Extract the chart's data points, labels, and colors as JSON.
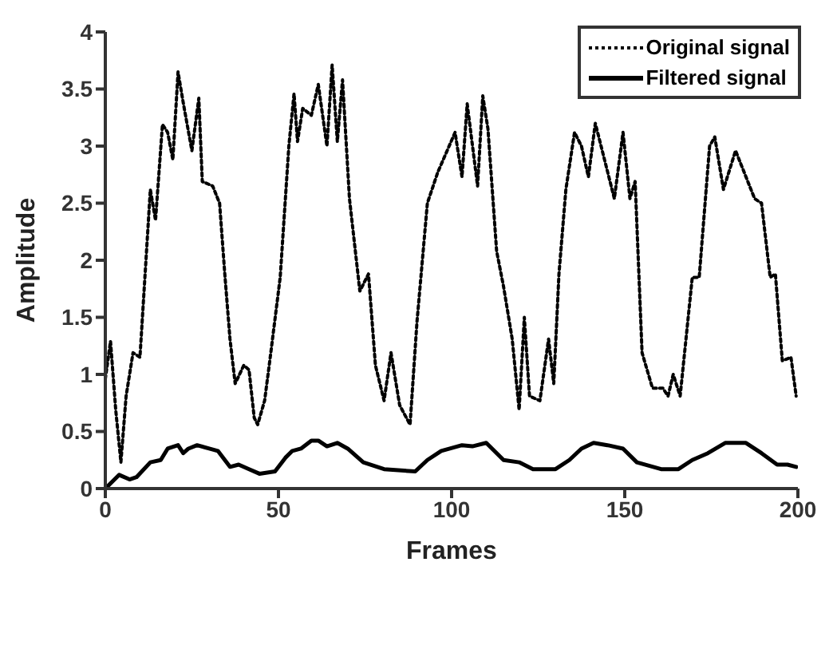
{
  "chart_data": {
    "type": "line",
    "xlabel": "Frames",
    "ylabel": "Amplitude",
    "xlim": [
      0,
      200
    ],
    "xticks": [
      0,
      50,
      100,
      150,
      200
    ],
    "ylim": [
      0,
      4
    ],
    "yticks": [
      0,
      0.5,
      1,
      1.5,
      2,
      2.5,
      3,
      3.5,
      4
    ],
    "grid": false,
    "legend": "top right",
    "marker": "none",
    "series": [
      {
        "name": "Original signal",
        "color": "#000000",
        "line_style": "dotted",
        "x": [
          0,
          1.5,
          3,
          4.5,
          6,
          8,
          10,
          13,
          14.5,
          16.5,
          18,
          19.5,
          21,
          22.5,
          25,
          27,
          28,
          31,
          33,
          34.5,
          36,
          37.5,
          40,
          41.5,
          43,
          44,
          46,
          47.5,
          50.5,
          53,
          54.5,
          55.5,
          57,
          59.5,
          61.5,
          64,
          65.5,
          67,
          68.5,
          70.5,
          73.5,
          76,
          78,
          80.5,
          82.5,
          85,
          88,
          90,
          93,
          96,
          101,
          103,
          104.5,
          107.5,
          109,
          110.5,
          113,
          115,
          117.5,
          119.5,
          121,
          122.5,
          125.5,
          128,
          129.5,
          131,
          133,
          135.5,
          137.5,
          139.5,
          141.5,
          147,
          149.5,
          151.5,
          153,
          155,
          158,
          161,
          162.5,
          164,
          166,
          169.5,
          171.5,
          174.5,
          176,
          178.5,
          182,
          187.5,
          189.5,
          192,
          193.5,
          195.5,
          198,
          199.5
        ],
        "values": [
          0.96,
          1.29,
          0.69,
          0.23,
          0.81,
          1.19,
          1.15,
          2.62,
          2.35,
          3.19,
          3.12,
          2.88,
          3.65,
          3.38,
          2.96,
          3.42,
          2.69,
          2.65,
          2.5,
          1.88,
          1.31,
          0.92,
          1.08,
          1.04,
          0.62,
          0.56,
          0.77,
          1.12,
          1.85,
          3.0,
          3.46,
          3.04,
          3.33,
          3.27,
          3.54,
          3.0,
          3.71,
          3.04,
          3.58,
          2.54,
          1.73,
          1.88,
          1.08,
          0.77,
          1.19,
          0.73,
          0.56,
          1.46,
          2.5,
          2.77,
          3.12,
          2.73,
          3.37,
          2.65,
          3.44,
          3.15,
          2.08,
          1.77,
          1.31,
          0.69,
          1.5,
          0.81,
          0.77,
          1.31,
          0.92,
          1.88,
          2.62,
          3.12,
          3.0,
          2.73,
          3.2,
          2.54,
          3.12,
          2.54,
          2.69,
          1.19,
          0.88,
          0.88,
          0.81,
          1.0,
          0.81,
          1.85,
          1.85,
          3.0,
          3.08,
          2.62,
          2.96,
          2.54,
          2.5,
          1.85,
          1.88,
          1.12,
          1.15,
          0.81
        ]
      },
      {
        "name": "Filtered signal",
        "color": "#000000",
        "line_style": "solid",
        "x": [
          0,
          4,
          7,
          9,
          13,
          16,
          18,
          21,
          22.5,
          24,
          26.5,
          30,
          32.5,
          36,
          38.5,
          41.5,
          44.5,
          49,
          52,
          54,
          56.5,
          59.5,
          61.5,
          64,
          67,
          70,
          74.5,
          80.5,
          89.5,
          93,
          97,
          103,
          106,
          110,
          115,
          119.5,
          123.5,
          130,
          134,
          137.5,
          141,
          145,
          149.5,
          153.5,
          160.5,
          165.5,
          169.5,
          174,
          179,
          185,
          189.5,
          194,
          197,
          199.5
        ],
        "values": [
          0,
          0.12,
          0.08,
          0.1,
          0.23,
          0.25,
          0.35,
          0.38,
          0.31,
          0.35,
          0.38,
          0.35,
          0.33,
          0.19,
          0.21,
          0.17,
          0.13,
          0.15,
          0.27,
          0.33,
          0.35,
          0.42,
          0.42,
          0.37,
          0.4,
          0.35,
          0.23,
          0.17,
          0.15,
          0.25,
          0.33,
          0.38,
          0.37,
          0.4,
          0.25,
          0.23,
          0.17,
          0.17,
          0.25,
          0.35,
          0.4,
          0.38,
          0.35,
          0.23,
          0.17,
          0.17,
          0.25,
          0.31,
          0.4,
          0.4,
          0.31,
          0.21,
          0.21,
          0.19
        ]
      }
    ]
  }
}
